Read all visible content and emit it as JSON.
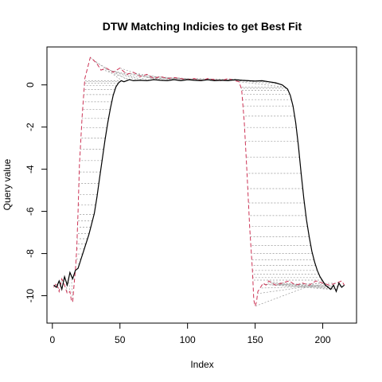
{
  "chart_data": {
    "type": "line",
    "title": "DTW Matching Indicies to get Best Fit",
    "xlabel": "Index",
    "ylabel": "Query value",
    "xlim": [
      -4,
      225
    ],
    "ylim": [
      -11.3,
      1.8
    ],
    "x_ticks": [
      0,
      50,
      100,
      150,
      200
    ],
    "y_ticks": [
      0,
      -2,
      -4,
      -6,
      -8,
      -10
    ],
    "grid": false,
    "legend": "none",
    "colors": {
      "query": "#000000",
      "reference": "#CC3355",
      "matching": "#999999"
    },
    "series": [
      {
        "style": "solid",
        "color": "#000000",
        "x": [
          1,
          3,
          5,
          7,
          9,
          11,
          13,
          15,
          17,
          19,
          21,
          23,
          25,
          27,
          29,
          31,
          33,
          35,
          37,
          39,
          41,
          43,
          45,
          47,
          49,
          51,
          53,
          55,
          57,
          60,
          65,
          70,
          75,
          80,
          85,
          90,
          95,
          100,
          105,
          110,
          115,
          120,
          125,
          130,
          135,
          140,
          145,
          150,
          155,
          160,
          165,
          170,
          174,
          176,
          178,
          180,
          182,
          184,
          186,
          188,
          190,
          192,
          194,
          196,
          198,
          200,
          202,
          204,
          206,
          208,
          210,
          212,
          214,
          216
        ],
        "y": [
          -9.5,
          -9.6,
          -9.3,
          -9.7,
          -9.1,
          -9.5,
          -8.9,
          -9.2,
          -8.8,
          -8.7,
          -8.3,
          -7.9,
          -7.5,
          -7.1,
          -6.6,
          -6.1,
          -5.3,
          -4.4,
          -3.5,
          -2.6,
          -1.8,
          -1.1,
          -0.5,
          -0.1,
          0.1,
          0.2,
          0.15,
          0.2,
          0.25,
          0.2,
          0.22,
          0.2,
          0.25,
          0.22,
          0.2,
          0.25,
          0.2,
          0.25,
          0.22,
          0.2,
          0.25,
          0.2,
          0.22,
          0.2,
          0.25,
          0.22,
          0.2,
          0.18,
          0.2,
          0.15,
          0.1,
          0.0,
          -0.2,
          -0.5,
          -1.0,
          -1.8,
          -2.9,
          -4.2,
          -5.4,
          -6.4,
          -7.2,
          -7.9,
          -8.4,
          -8.8,
          -9.1,
          -9.3,
          -9.5,
          -9.6,
          -9.7,
          -9.5,
          -9.8,
          -9.4,
          -9.6,
          -9.5
        ]
      },
      {
        "style": "dashed",
        "color": "#CC3355",
        "x": [
          1,
          3,
          5,
          7,
          9,
          11,
          13,
          14,
          15,
          16,
          17,
          18,
          19,
          20,
          22,
          24,
          26,
          28,
          30,
          33,
          36,
          40,
          45,
          50,
          55,
          60,
          65,
          70,
          75,
          80,
          85,
          90,
          95,
          100,
          105,
          110,
          115,
          120,
          125,
          130,
          135,
          138,
          140,
          142,
          144,
          146,
          148,
          149,
          150,
          151,
          152,
          154,
          156,
          158,
          160,
          165,
          170,
          175,
          180,
          185,
          190,
          195,
          200,
          205,
          210,
          214,
          216
        ],
        "y": [
          -9.6,
          -9.4,
          -9.8,
          -9.2,
          -9.5,
          -9.9,
          -9.8,
          -10.2,
          -10.3,
          -9.5,
          -8.8,
          -7.8,
          -6.0,
          -3.8,
          -1.5,
          0.3,
          0.8,
          1.3,
          1.2,
          1.0,
          0.7,
          0.8,
          0.6,
          0.8,
          0.5,
          0.6,
          0.4,
          0.5,
          0.3,
          0.4,
          0.3,
          0.35,
          0.3,
          0.25,
          0.3,
          0.2,
          0.3,
          0.25,
          0.2,
          0.3,
          0.2,
          0.15,
          -0.2,
          -1.8,
          -4.2,
          -6.8,
          -8.8,
          -10.2,
          -10.5,
          -10.3,
          -9.8,
          -9.6,
          -9.4,
          -9.5,
          -9.3,
          -9.5,
          -9.4,
          -9.3,
          -9.5,
          -9.4,
          -9.5,
          -9.3,
          -9.4,
          -9.5,
          -9.4,
          -9.3,
          -9.5
        ]
      }
    ]
  }
}
